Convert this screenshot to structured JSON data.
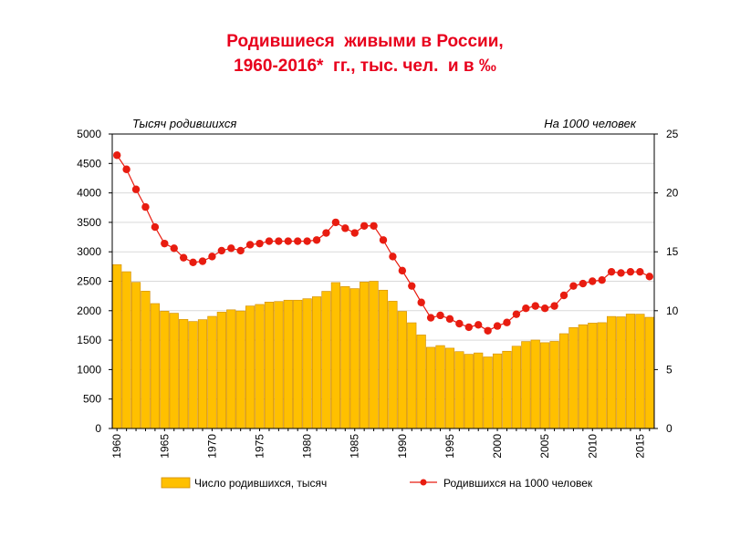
{
  "title": {
    "line1": "Родившиеся  живыми в России,",
    "line2": "1960-2016*  гг., тыс. чел.  и в ‰"
  },
  "colors": {
    "title": "#e8001c",
    "bar_fill": "#ffc000",
    "bar_stroke": "#d08a00",
    "line": "#e81c10",
    "marker": "#e81c10"
  },
  "chart_data": {
    "type": "bar",
    "left_axis_title": "Тысяч родившихся",
    "right_axis_title": "На 1000 человек",
    "ylim_left": [
      0,
      5000
    ],
    "ylim_right": [
      0,
      25
    ],
    "y_ticks_left": [
      "0",
      "500",
      "1000",
      "1500",
      "2000",
      "2500",
      "3000",
      "3500",
      "4000",
      "4500",
      "5000"
    ],
    "y_ticks_right": [
      "0",
      "5",
      "10",
      "15",
      "20",
      "25"
    ],
    "x_tick_labels": [
      "1960",
      "1965",
      "1970",
      "1975",
      "1980",
      "1985",
      "1990",
      "1995",
      "2000",
      "2005",
      "2010",
      "2015"
    ],
    "x": [
      1960,
      1961,
      1962,
      1963,
      1964,
      1965,
      1966,
      1967,
      1968,
      1969,
      1970,
      1971,
      1972,
      1973,
      1974,
      1975,
      1976,
      1977,
      1978,
      1979,
      1980,
      1981,
      1982,
      1983,
      1984,
      1985,
      1986,
      1987,
      1988,
      1989,
      1990,
      1991,
      1992,
      1993,
      1994,
      1995,
      1996,
      1997,
      1998,
      1999,
      2000,
      2001,
      2002,
      2003,
      2004,
      2005,
      2006,
      2007,
      2008,
      2009,
      2010,
      2011,
      2012,
      2013,
      2014,
      2015,
      2016
    ],
    "series": [
      {
        "name": "Число  родившихся, тысяч",
        "kind": "bar",
        "axis": "left",
        "values": [
          2782,
          2662,
          2482,
          2332,
          2121,
          1991,
          1957,
          1852,
          1817,
          1848,
          1904,
          1975,
          2015,
          1995,
          2080,
          2106,
          2147,
          2156,
          2179,
          2179,
          2203,
          2237,
          2329,
          2478,
          2410,
          2375,
          2486,
          2500,
          2349,
          2161,
          1989,
          1795,
          1588,
          1379,
          1408,
          1364,
          1305,
          1260,
          1283,
          1215,
          1267,
          1312,
          1397,
          1477,
          1502,
          1457,
          1479,
          1610,
          1714,
          1762,
          1789,
          1797,
          1902,
          1896,
          1943,
          1941,
          1888
        ]
      },
      {
        "name": "Родившихся на 1000 человек",
        "kind": "line",
        "axis": "right",
        "values": [
          23.2,
          22.0,
          20.3,
          18.8,
          17.1,
          15.7,
          15.3,
          14.5,
          14.1,
          14.2,
          14.6,
          15.1,
          15.3,
          15.1,
          15.6,
          15.7,
          15.9,
          15.9,
          15.9,
          15.9,
          15.9,
          16.0,
          16.6,
          17.5,
          17.0,
          16.6,
          17.2,
          17.2,
          16.0,
          14.6,
          13.4,
          12.1,
          10.7,
          9.4,
          9.6,
          9.3,
          8.9,
          8.6,
          8.8,
          8.3,
          8.7,
          9.0,
          9.7,
          10.2,
          10.4,
          10.2,
          10.4,
          11.3,
          12.1,
          12.3,
          12.5,
          12.6,
          13.3,
          13.2,
          13.3,
          13.3,
          12.9
        ]
      }
    ],
    "legend": {
      "position": "bottom",
      "bar_label": "Число  родившихся, тысяч",
      "line_label": "Родившихся на 1000 человек"
    }
  }
}
